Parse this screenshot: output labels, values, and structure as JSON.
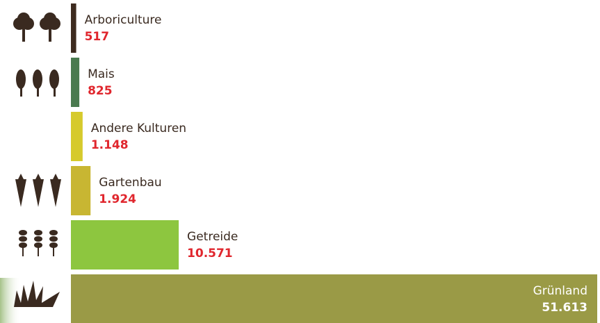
{
  "chart_data": {
    "type": "bar",
    "categories": [
      "Arboriculture",
      "Mais",
      "Andere Kulturen",
      "Gartenbau",
      "Getreide",
      "Grünland"
    ],
    "values": [
      517,
      825,
      1148,
      1924,
      10571,
      51613
    ],
    "value_labels": [
      "517",
      "825",
      "1.148",
      "1.924",
      "10.571",
      "51.613"
    ],
    "colors": [
      "#3d2b1f",
      "#4a7a4f",
      "#d6ca2c",
      "#c8b632",
      "#8dc63f",
      "#9a9a46"
    ]
  }
}
